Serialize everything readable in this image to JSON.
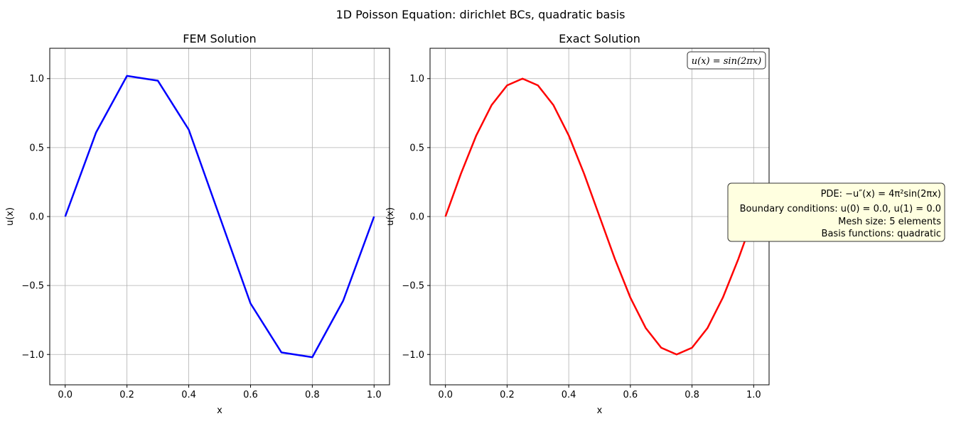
{
  "suptitle": "1D Poisson Equation: dirichlet BCs, quadratic basis",
  "colors": {
    "fem_line": "#0000ff",
    "exact_line": "#ff0000",
    "grid": "#b0b0b0",
    "info_box_bg": "#ffffe0"
  },
  "chart_data": [
    {
      "type": "line",
      "title": "FEM Solution",
      "xlabel": "x",
      "ylabel": "u(x)",
      "xlim": [
        -0.05,
        1.05
      ],
      "ylim": [
        -1.22,
        1.22
      ],
      "xticks": [
        0.0,
        0.2,
        0.4,
        0.6,
        0.8,
        1.0
      ],
      "xtick_labels": [
        "0.0",
        "0.2",
        "0.4",
        "0.6",
        "0.8",
        "1.0"
      ],
      "yticks": [
        -1.0,
        -0.5,
        0.0,
        0.5,
        1.0
      ],
      "ytick_labels": [
        "−1.0",
        "−0.5",
        "0.0",
        "0.5",
        "1.0"
      ],
      "grid": true,
      "series": [
        {
          "color": "#0000ff",
          "x": [
            0.0,
            0.1,
            0.2,
            0.3,
            0.4,
            0.5,
            0.6,
            0.7,
            0.8,
            0.9,
            1.0
          ],
          "y": [
            0.0,
            0.61,
            1.02,
            0.985,
            0.63,
            0.0,
            -0.63,
            -0.985,
            -1.02,
            -0.61,
            0.0
          ]
        }
      ]
    },
    {
      "type": "line",
      "title": "Exact Solution",
      "xlabel": "x",
      "ylabel": "u(x)",
      "xlim": [
        -0.05,
        1.05
      ],
      "ylim": [
        -1.22,
        1.22
      ],
      "xticks": [
        0.0,
        0.2,
        0.4,
        0.6,
        0.8,
        1.0
      ],
      "xtick_labels": [
        "0.0",
        "0.2",
        "0.4",
        "0.6",
        "0.8",
        "1.0"
      ],
      "yticks": [
        -1.0,
        -0.5,
        0.0,
        0.5,
        1.0
      ],
      "ytick_labels": [
        "−1.0",
        "−0.5",
        "0.0",
        "0.5",
        "1.0"
      ],
      "grid": true,
      "legend_box": "u(x) = sin(2πx)",
      "legend_placement": "top-right",
      "series": [
        {
          "color": "#ff0000",
          "function": "sin(2*pi*x)",
          "x": [
            0.0,
            0.05,
            0.1,
            0.15,
            0.2,
            0.25,
            0.3,
            0.35,
            0.4,
            0.45,
            0.5,
            0.55,
            0.6,
            0.65,
            0.7,
            0.75,
            0.8,
            0.85,
            0.9,
            0.95,
            1.0
          ],
          "y": [
            0.0,
            0.309,
            0.588,
            0.809,
            0.951,
            1.0,
            0.951,
            0.809,
            0.588,
            0.309,
            0.0,
            -0.309,
            -0.588,
            -0.809,
            -0.951,
            -1.0,
            -0.951,
            -0.809,
            -0.588,
            -0.309,
            0.0
          ]
        }
      ]
    }
  ],
  "info_box": {
    "lines": [
      "PDE: −u″(x) = 4π²sin(2πx)",
      "Boundary conditions: u(0) = 0.0, u(1) = 0.0",
      "Mesh size: 5 elements",
      "Basis functions: quadratic"
    ]
  }
}
